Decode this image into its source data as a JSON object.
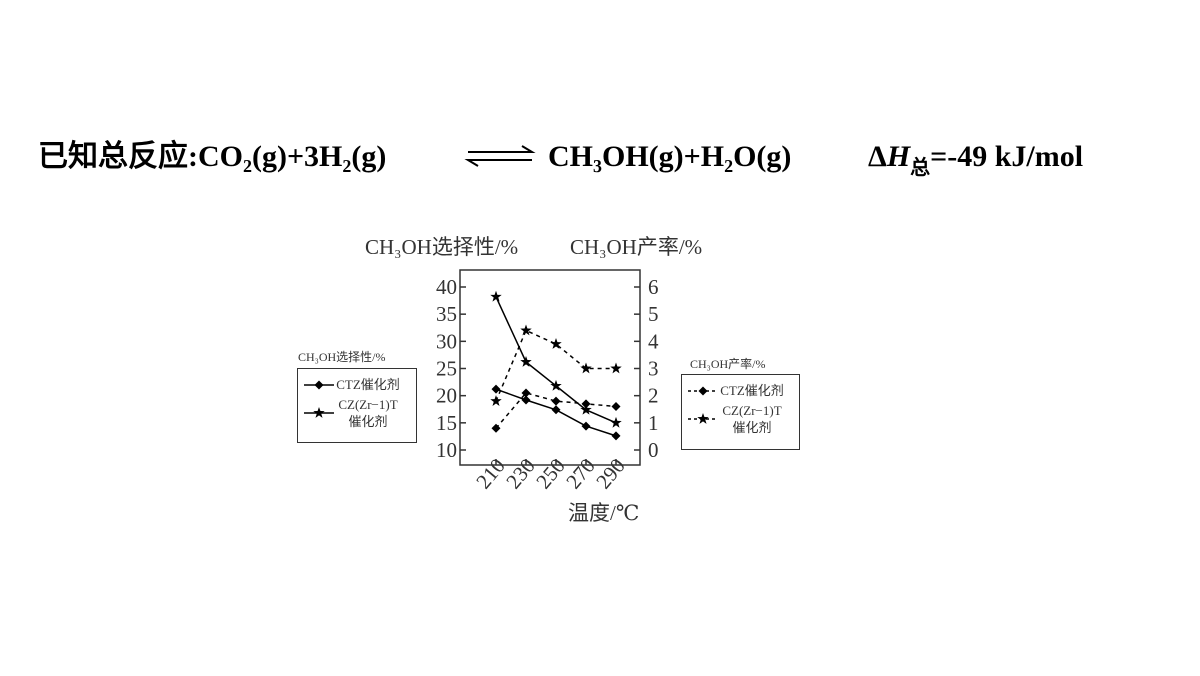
{
  "header": {
    "equation_left": "已知总反应:CO₂(g)+3H₂(g)",
    "equation_right": "CH₃OH(g)+H₂O(g)",
    "enthalpy": [
      "Δ",
      "H",
      "总",
      "=-49 kJ/mol"
    ]
  },
  "chart_data": {
    "type": "line",
    "y_label": "CH₃OH选择性/%",
    "y2_label": "CH₃OH产率/%",
    "x_label": "温度/℃",
    "x": [
      210,
      230,
      250,
      270,
      290
    ],
    "xlim": [
      186,
      306
    ],
    "xticks": [
      210,
      230,
      250,
      270,
      290
    ],
    "ylim": [
      10,
      40
    ],
    "yticks": [
      10,
      15,
      20,
      25,
      30,
      35,
      40
    ],
    "y2lim": [
      0,
      6
    ],
    "y2ticks": [
      0,
      1,
      2,
      3,
      4,
      5,
      6
    ],
    "legends": [
      {
        "title": "CH₃OH选择性/%",
        "axis": "y"
      },
      {
        "title": "CH₃OH产率/%",
        "axis": "y2"
      }
    ],
    "series": [
      {
        "name": "CTZ催化剂",
        "color": "#000000",
        "marker": "diamond",
        "dashed": false,
        "axis": "y",
        "values": [
          21.2,
          19.2,
          17.4,
          14.4,
          12.6
        ]
      },
      {
        "name": "CZ(Zr−1)T催化剂",
        "color": "#000000",
        "marker": "star",
        "dashed": false,
        "axis": "y",
        "values": [
          38.2,
          26.2,
          21.8,
          17.4,
          15
        ]
      },
      {
        "name": "CTZ催化剂",
        "color": "#000000",
        "marker": "diamond",
        "dashed": true,
        "axis": "y2",
        "values": [
          0.8,
          2.1,
          1.8,
          1.7,
          1.6
        ]
      },
      {
        "name": "CZ(Zr−1)T催化剂",
        "color": "#000000",
        "marker": "star",
        "dashed": true,
        "axis": "y2",
        "values": [
          1.8,
          4.4,
          3.9,
          3.0,
          3.0
        ]
      }
    ]
  }
}
